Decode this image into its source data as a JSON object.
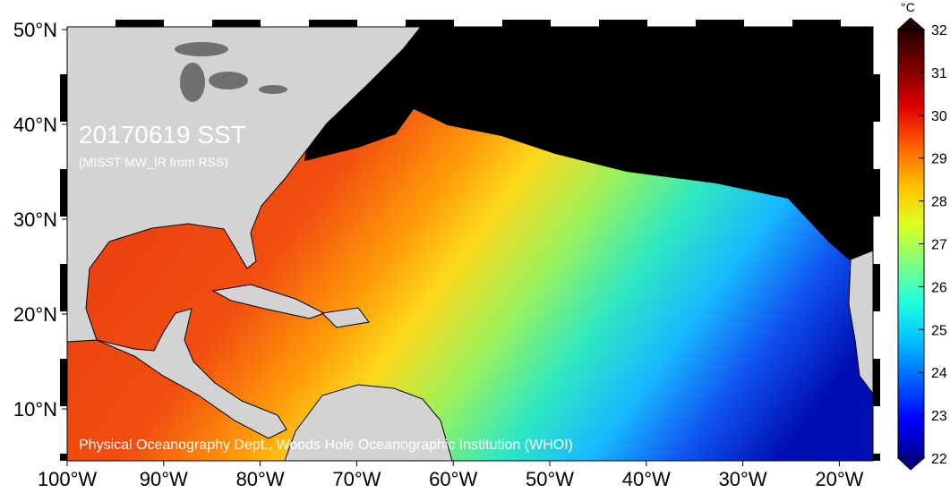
{
  "title": "20170619 SST",
  "subtitle": "(MISST MW_IR from RSS)",
  "credit": "Physical Oceanography Dept., Woods Hole Oceanographic Institution (WHOI)",
  "lon_ticks": [
    {
      "value": -100,
      "label": "100°W"
    },
    {
      "value": -90,
      "label": "90°W"
    },
    {
      "value": -80,
      "label": "80°W"
    },
    {
      "value": -70,
      "label": "70°W"
    },
    {
      "value": -60,
      "label": "60°W"
    },
    {
      "value": -50,
      "label": "50°W"
    },
    {
      "value": -40,
      "label": "40°W"
    },
    {
      "value": -30,
      "label": "30°W"
    },
    {
      "value": -20,
      "label": "20°W"
    }
  ],
  "lat_ticks": [
    {
      "value": 10,
      "label": "10°N"
    },
    {
      "value": 20,
      "label": "20°N"
    },
    {
      "value": 30,
      "label": "30°N"
    },
    {
      "value": 40,
      "label": "40°N"
    },
    {
      "value": 50,
      "label": "50°N"
    }
  ],
  "colorbar": {
    "unit": "°C",
    "lim": [
      22,
      32
    ],
    "ticks": [
      22,
      23,
      24,
      25,
      26,
      27,
      28,
      29,
      30,
      31,
      32
    ],
    "colors": [
      "#00008f",
      "#0000ff",
      "#0060ff",
      "#00c0ff",
      "#20ffdf",
      "#80ff80",
      "#dfff20",
      "#ffc000",
      "#ff6000",
      "#e00000",
      "#800000",
      "#200000"
    ]
  }
}
